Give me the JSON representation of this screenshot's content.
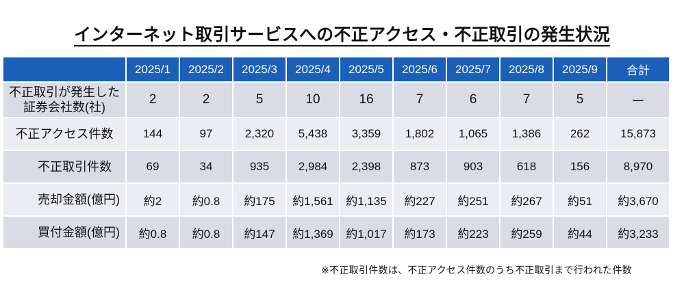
{
  "title": "インターネット取引サービスへの不正アクセス・不正取引の発生状況",
  "columns": [
    "2025/1",
    "2025/2",
    "2025/3",
    "2025/4",
    "2025/5",
    "2025/6",
    "2025/7",
    "2025/8",
    "2025/9",
    "合計"
  ],
  "rows": [
    {
      "label_line1": "不正取引が発生した",
      "label_line2": "証券会社数(社)",
      "values": [
        "2",
        "2",
        "5",
        "10",
        "16",
        "7",
        "6",
        "7",
        "5",
        "ー"
      ]
    },
    {
      "label": "不正アクセス件数",
      "values": [
        "144",
        "97",
        "2,320",
        "5,438",
        "3,359",
        "1,802",
        "1,065",
        "1,386",
        "262",
        "15,873"
      ]
    },
    {
      "label": "不正取引件数",
      "values": [
        "69",
        "34",
        "935",
        "2,984",
        "2,398",
        "873",
        "903",
        "618",
        "156",
        "8,970"
      ]
    },
    {
      "label": "売却金額(億円)",
      "values": [
        "約2",
        "約0.8",
        "約175",
        "約1,561",
        "約1,135",
        "約227",
        "約251",
        "約267",
        "約51",
        "約3,670"
      ]
    },
    {
      "label": "買付金額(億円)",
      "values": [
        "約0.8",
        "約0.8",
        "約147",
        "約1,369",
        "約1,017",
        "約173",
        "約223",
        "約259",
        "約44",
        "約3,233"
      ]
    }
  ],
  "note": "※不正取引件数は、不正アクセス件数のうち不正取引まで行われた件数",
  "colors": {
    "header_bg": "#1a5fb8",
    "row_dark": "#d9dce5",
    "row_light": "#ebedf2"
  }
}
